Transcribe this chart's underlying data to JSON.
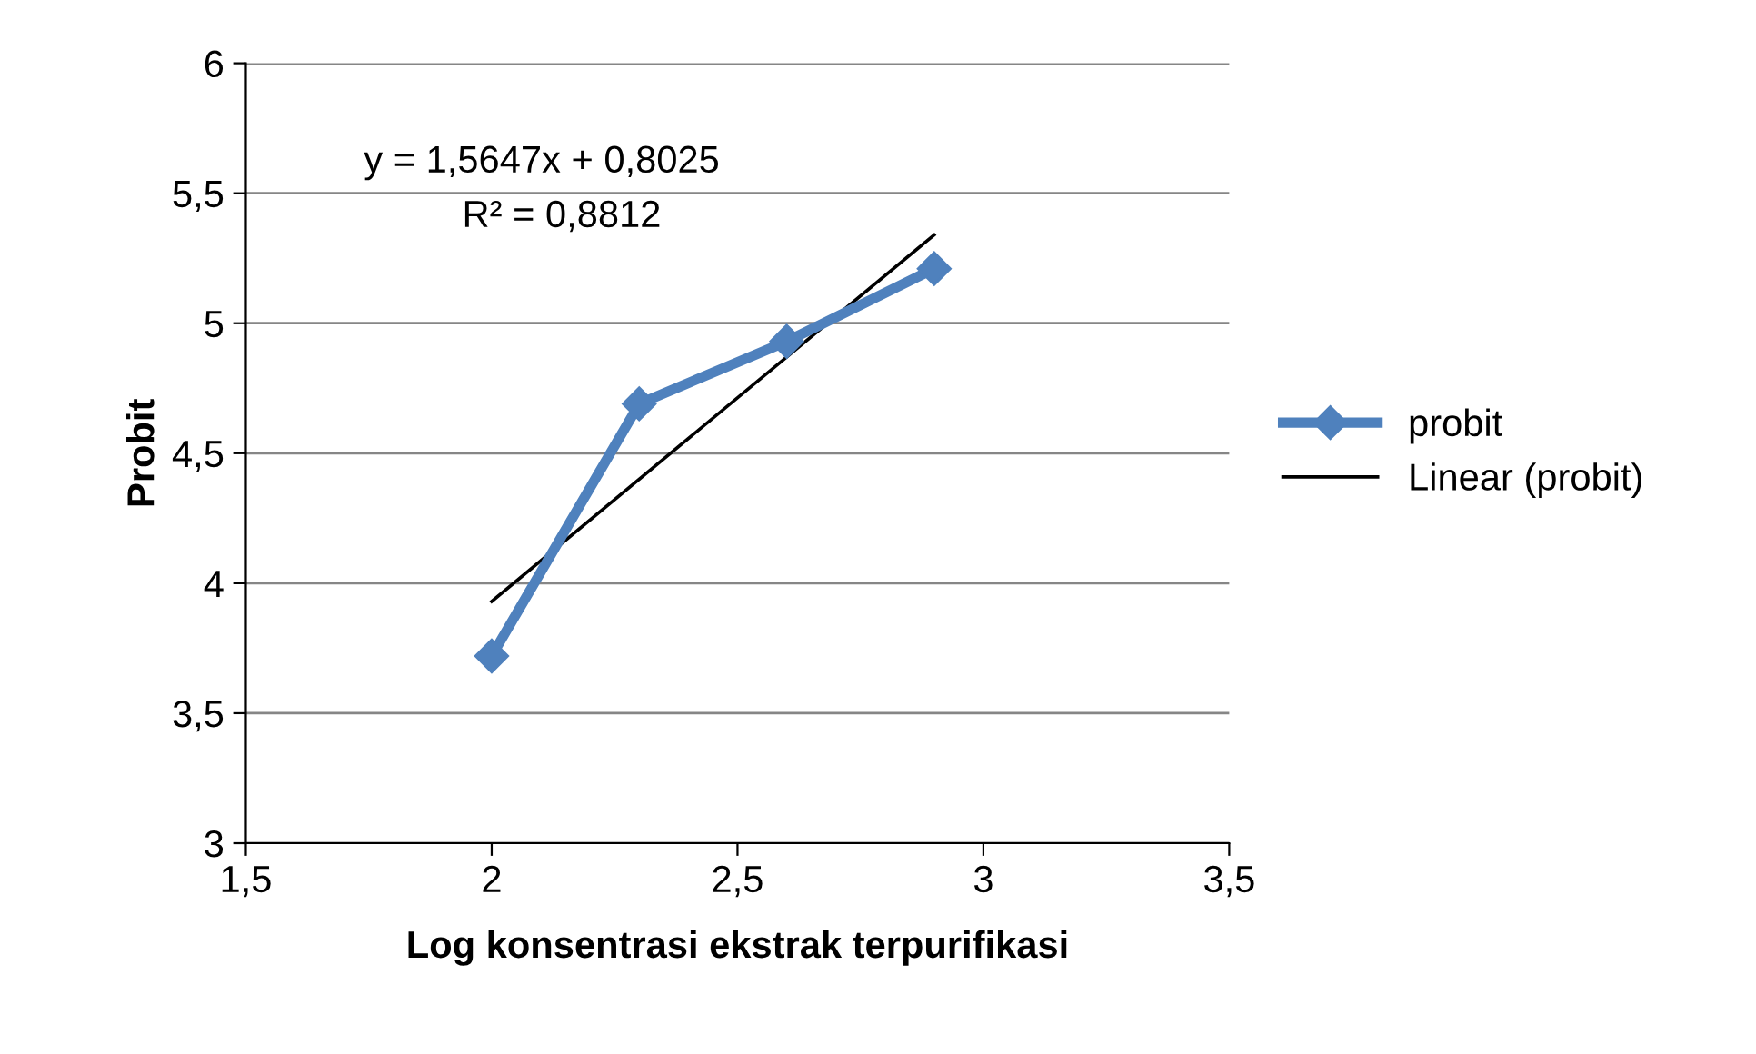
{
  "chart_data": {
    "type": "line",
    "xlabel": "Log konsentrasi ekstrak terpurifikasi",
    "ylabel": "Probit",
    "series": [
      {
        "name": "probit",
        "color": "#4f81bd",
        "x": [
          2,
          2.3,
          2.6,
          2.9
        ],
        "values": [
          3.72,
          4.69,
          4.93,
          5.21
        ],
        "marker": "diamond"
      },
      {
        "name": "Linear (probit)",
        "color": "#000000",
        "x": [
          2,
          2.9
        ],
        "values": [
          3.93,
          5.34
        ],
        "marker": "none"
      }
    ],
    "xlim": [
      1.5,
      3.5
    ],
    "xticks": [
      {
        "value": 1.5,
        "label": "1,5"
      },
      2,
      {
        "value": 2.5,
        "label": "2,5"
      },
      3,
      {
        "value": 3.5,
        "label": "3,5"
      }
    ],
    "ylim": [
      3,
      6
    ],
    "yticks": [
      3,
      {
        "value": 3.5,
        "label": "3,5"
      },
      4,
      {
        "value": 4.5,
        "label": "4,5"
      },
      5,
      {
        "value": 5.5,
        "label": "5,5"
      },
      6
    ],
    "grid": "y",
    "legend": "right",
    "annotations": [
      "y = 1,5647x + 0,8025",
      "R² = 0,8812"
    ]
  }
}
